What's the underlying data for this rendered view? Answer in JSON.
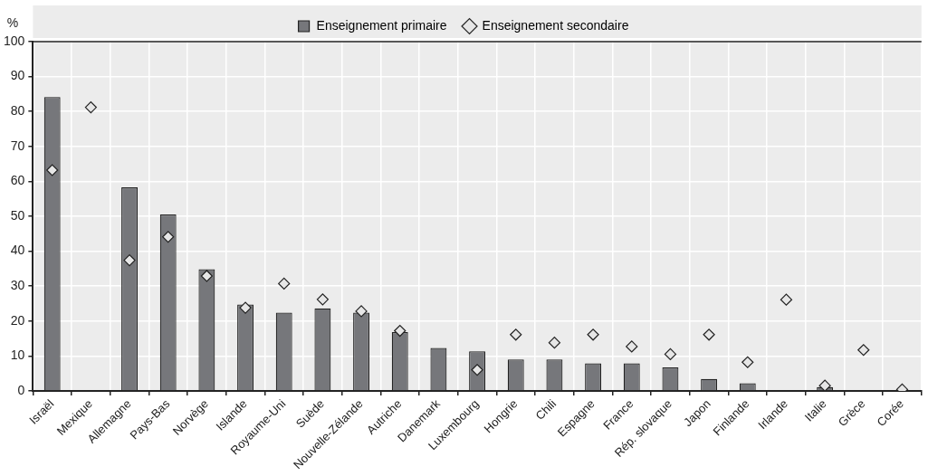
{
  "chart_data": {
    "type": "bar",
    "ylabel": "%",
    "categories": [
      "Israël",
      "Mexique",
      "Allemagne",
      "Pays-Bas",
      "Norvège",
      "Islande",
      "Royaume-Uni",
      "Suède",
      "Nouvelle-Zélande",
      "Autriche",
      "Danemark",
      "Luxembourg",
      "Hongrie",
      "Chili",
      "Espagne",
      "France",
      "Rép. slovaque",
      "Japon",
      "Finlande",
      "Irlande",
      "Italie",
      "Grèce",
      "Corée"
    ],
    "series": [
      {
        "name": "Enseignement primaire",
        "color": "#76777b",
        "values": [
          84.1,
          null,
          58.3,
          50.5,
          34.8,
          24.7,
          22.4,
          23.6,
          22.4,
          16.8,
          12.3,
          11.3,
          9.0,
          9.0,
          7.9,
          7.9,
          6.7,
          3.4,
          2.2,
          null,
          1.1,
          null,
          null
        ]
      },
      {
        "name": "Enseignement secondaire",
        "type": "scatter",
        "color": "#e6e6e6",
        "marker": "diamond",
        "values": [
          63.2,
          81.2,
          37.4,
          44.1,
          32.9,
          23.8,
          30.7,
          26.2,
          22.8,
          17.2,
          null,
          6.0,
          16.1,
          13.8,
          16.1,
          12.7,
          10.5,
          16.1,
          8.2,
          26.1,
          1.5,
          11.7,
          0.4
        ]
      }
    ],
    "ylim": [
      0,
      100
    ],
    "yticks": [
      0,
      10,
      20,
      30,
      40,
      50,
      60,
      70,
      80,
      90,
      100
    ],
    "grid": true,
    "legend": "top"
  }
}
